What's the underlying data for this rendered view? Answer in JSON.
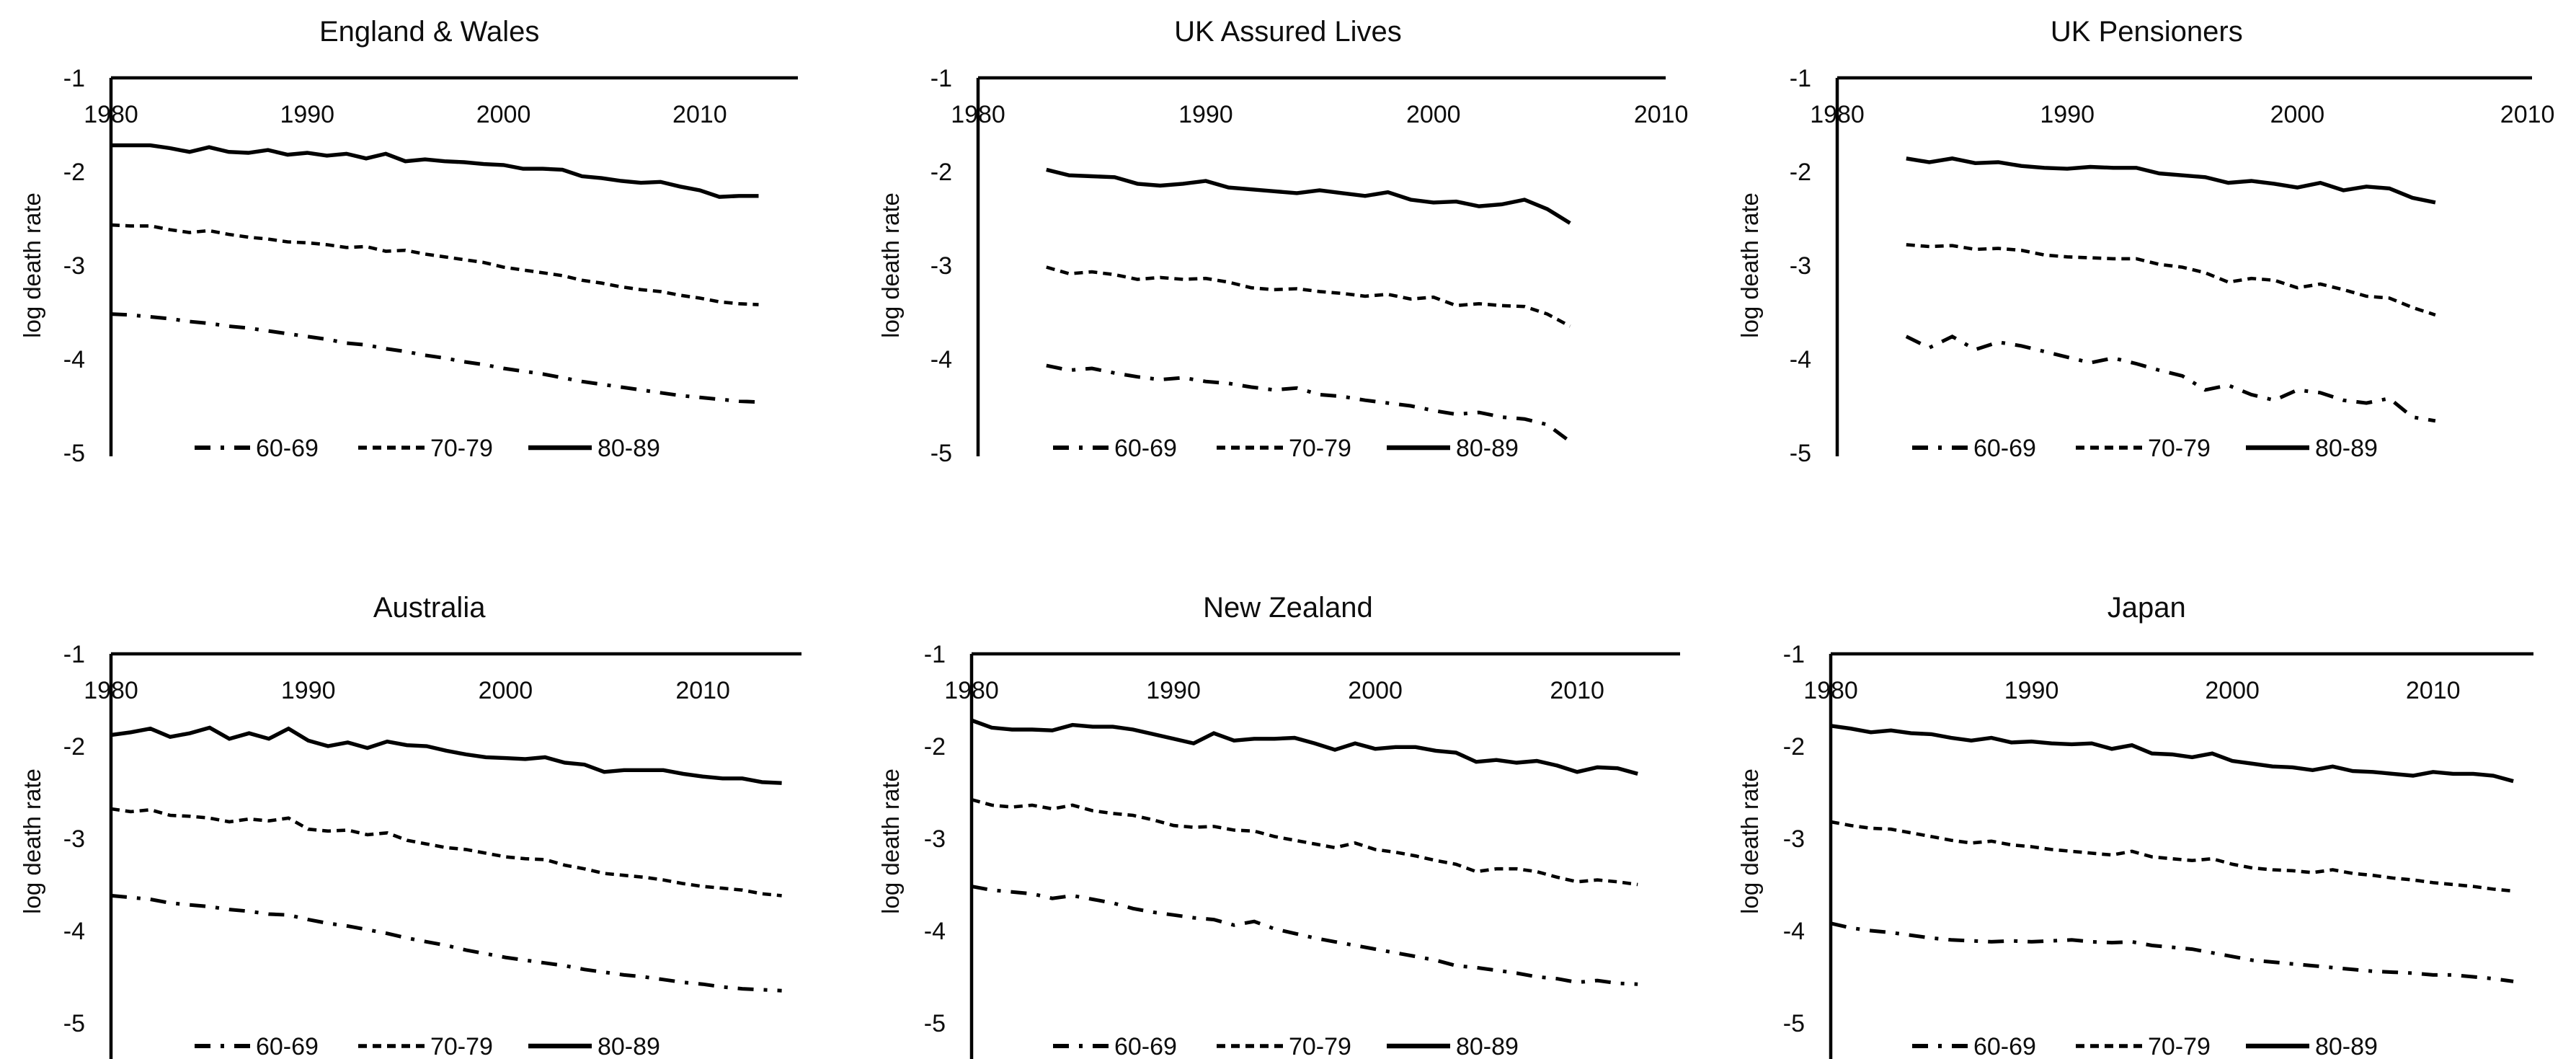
{
  "figure": {
    "ylabel": "log death rate",
    "yticks": [
      "-1",
      "-2",
      "-3",
      "-4",
      "-5"
    ],
    "xticks": [
      "1980",
      "1990",
      "2000",
      "2010"
    ],
    "legend": [
      {
        "label": "60-69",
        "style": "dashdot"
      },
      {
        "label": "70-79",
        "style": "dashed"
      },
      {
        "label": "80-89",
        "style": "solid"
      }
    ]
  },
  "chart_data": [
    {
      "type": "line",
      "title": "England & Wales",
      "ylabel": "log death rate",
      "xlim": [
        1980,
        2015
      ],
      "ylim": [
        -5,
        -1
      ],
      "xticks": [
        1980,
        1990,
        2000,
        2010
      ],
      "start_year": 1980,
      "series": [
        {
          "name": "60-69",
          "style": "dashdot",
          "values": [
            -3.52,
            -3.53,
            -3.55,
            -3.57,
            -3.6,
            -3.62,
            -3.65,
            -3.67,
            -3.7,
            -3.73,
            -3.76,
            -3.79,
            -3.83,
            -3.85,
            -3.89,
            -3.92,
            -3.96,
            -3.99,
            -4.03,
            -4.06,
            -4.1,
            -4.13,
            -4.16,
            -4.2,
            -4.24,
            -4.27,
            -4.3,
            -4.33,
            -4.36,
            -4.39,
            -4.41,
            -4.43,
            -4.45,
            -4.46
          ]
        },
        {
          "name": "70-79",
          "style": "dashed",
          "values": [
            -2.57,
            -2.58,
            -2.58,
            -2.62,
            -2.65,
            -2.63,
            -2.67,
            -2.7,
            -2.72,
            -2.75,
            -2.76,
            -2.78,
            -2.81,
            -2.8,
            -2.85,
            -2.84,
            -2.88,
            -2.91,
            -2.94,
            -2.97,
            -3.02,
            -3.05,
            -3.08,
            -3.11,
            -3.16,
            -3.19,
            -3.23,
            -3.26,
            -3.28,
            -3.32,
            -3.35,
            -3.39,
            -3.41,
            -3.42
          ]
        },
        {
          "name": "80-89",
          "style": "solid",
          "values": [
            -1.72,
            -1.72,
            -1.72,
            -1.75,
            -1.79,
            -1.74,
            -1.79,
            -1.8,
            -1.77,
            -1.82,
            -1.8,
            -1.83,
            -1.81,
            -1.86,
            -1.81,
            -1.89,
            -1.87,
            -1.89,
            -1.9,
            -1.92,
            -1.93,
            -1.97,
            -1.97,
            -1.98,
            -2.05,
            -2.07,
            -2.1,
            -2.12,
            -2.11,
            -2.16,
            -2.2,
            -2.27,
            -2.26,
            -2.26
          ]
        }
      ]
    },
    {
      "type": "line",
      "title": "UK Assured Lives",
      "ylabel": "log death rate",
      "xlim": [
        1980,
        2010.2
      ],
      "ylim": [
        -5,
        -1
      ],
      "xticks": [
        1980,
        1990,
        2000,
        2010
      ],
      "start_year": 1983,
      "series": [
        {
          "name": "60-69",
          "style": "dashdot",
          "values": [
            -4.07,
            -4.12,
            -4.1,
            -4.15,
            -4.19,
            -4.22,
            -4.2,
            -4.24,
            -4.26,
            -4.3,
            -4.33,
            -4.31,
            -4.38,
            -4.4,
            -4.44,
            -4.47,
            -4.5,
            -4.55,
            -4.59,
            -4.57,
            -4.62,
            -4.64,
            -4.7,
            -4.88
          ]
        },
        {
          "name": "70-79",
          "style": "dashed",
          "values": [
            -3.02,
            -3.09,
            -3.07,
            -3.1,
            -3.15,
            -3.13,
            -3.15,
            -3.14,
            -3.18,
            -3.24,
            -3.26,
            -3.25,
            -3.28,
            -3.3,
            -3.33,
            -3.31,
            -3.36,
            -3.34,
            -3.43,
            -3.41,
            -3.43,
            -3.44,
            -3.52,
            -3.65
          ]
        },
        {
          "name": "80-89",
          "style": "solid",
          "values": [
            -1.98,
            -2.04,
            -2.05,
            -2.06,
            -2.13,
            -2.15,
            -2.13,
            -2.1,
            -2.17,
            -2.19,
            -2.21,
            -2.23,
            -2.2,
            -2.23,
            -2.26,
            -2.22,
            -2.3,
            -2.33,
            -2.32,
            -2.37,
            -2.35,
            -2.3,
            -2.4,
            -2.55
          ]
        }
      ]
    },
    {
      "type": "line",
      "title": "UK Pensioners",
      "ylabel": "log death rate",
      "xlim": [
        1980,
        2010.2
      ],
      "ylim": [
        -5,
        -1
      ],
      "xticks": [
        1980,
        1990,
        2000,
        2010
      ],
      "start_year": 1983,
      "series": [
        {
          "name": "60-69",
          "style": "dashdot",
          "values": [
            -3.76,
            -3.88,
            -3.76,
            -3.9,
            -3.82,
            -3.86,
            -3.92,
            -3.98,
            -4.04,
            -3.99,
            -4.05,
            -4.12,
            -4.18,
            -4.33,
            -4.28,
            -4.38,
            -4.44,
            -4.33,
            -4.36,
            -4.44,
            -4.47,
            -4.42,
            -4.62,
            -4.66
          ]
        },
        {
          "name": "70-79",
          "style": "dashed",
          "values": [
            -2.78,
            -2.8,
            -2.79,
            -2.83,
            -2.82,
            -2.84,
            -2.89,
            -2.91,
            -2.92,
            -2.93,
            -2.93,
            -2.99,
            -3.02,
            -3.08,
            -3.18,
            -3.14,
            -3.16,
            -3.24,
            -3.2,
            -3.26,
            -3.33,
            -3.35,
            -3.45,
            -3.53
          ]
        },
        {
          "name": "80-89",
          "style": "solid",
          "values": [
            -1.86,
            -1.9,
            -1.86,
            -1.91,
            -1.9,
            -1.94,
            -1.96,
            -1.97,
            -1.95,
            -1.96,
            -1.96,
            -2.02,
            -2.04,
            -2.06,
            -2.12,
            -2.1,
            -2.13,
            -2.17,
            -2.12,
            -2.2,
            -2.16,
            -2.18,
            -2.28,
            -2.33
          ]
        }
      ]
    },
    {
      "type": "line",
      "title": "Australia",
      "ylabel": "log death rate",
      "xlim": [
        1980,
        2015
      ],
      "ylim": [
        -5,
        -1
      ],
      "xticks": [
        1980,
        1990,
        2000,
        2010
      ],
      "start_year": 1980,
      "series": [
        {
          "name": "60-69",
          "style": "dashdot",
          "values": [
            -3.62,
            -3.64,
            -3.66,
            -3.7,
            -3.72,
            -3.74,
            -3.77,
            -3.79,
            -3.82,
            -3.83,
            -3.88,
            -3.92,
            -3.95,
            -3.99,
            -4.03,
            -4.08,
            -4.12,
            -4.16,
            -4.21,
            -4.25,
            -4.29,
            -4.32,
            -4.35,
            -4.38,
            -4.42,
            -4.45,
            -4.48,
            -4.5,
            -4.53,
            -4.56,
            -4.58,
            -4.61,
            -4.63,
            -4.64,
            -4.65
          ]
        },
        {
          "name": "70-79",
          "style": "dashed",
          "values": [
            -2.68,
            -2.71,
            -2.69,
            -2.75,
            -2.76,
            -2.78,
            -2.82,
            -2.79,
            -2.81,
            -2.78,
            -2.9,
            -2.92,
            -2.91,
            -2.96,
            -2.94,
            -3.02,
            -3.06,
            -3.1,
            -3.12,
            -3.16,
            -3.2,
            -3.22,
            -3.23,
            -3.29,
            -3.33,
            -3.38,
            -3.4,
            -3.42,
            -3.45,
            -3.49,
            -3.52,
            -3.54,
            -3.56,
            -3.6,
            -3.62
          ]
        },
        {
          "name": "80-89",
          "style": "solid",
          "values": [
            -1.88,
            -1.85,
            -1.81,
            -1.9,
            -1.86,
            -1.8,
            -1.92,
            -1.86,
            -1.92,
            -1.81,
            -1.94,
            -2.0,
            -1.96,
            -2.02,
            -1.95,
            -1.99,
            -2.0,
            -2.05,
            -2.09,
            -2.12,
            -2.13,
            -2.14,
            -2.12,
            -2.18,
            -2.2,
            -2.28,
            -2.26,
            -2.26,
            -2.26,
            -2.3,
            -2.33,
            -2.35,
            -2.35,
            -2.39,
            -2.4
          ]
        }
      ]
    },
    {
      "type": "line",
      "title": "New Zealand",
      "ylabel": "log death rate",
      "xlim": [
        1980,
        2015.1
      ],
      "ylim": [
        -5,
        -1
      ],
      "xticks": [
        1980,
        1990,
        2000,
        2010
      ],
      "start_year": 1980,
      "series": [
        {
          "name": "60-69",
          "style": "dashdot",
          "values": [
            -3.52,
            -3.56,
            -3.58,
            -3.6,
            -3.65,
            -3.62,
            -3.66,
            -3.7,
            -3.76,
            -3.8,
            -3.83,
            -3.86,
            -3.88,
            -3.94,
            -3.9,
            -3.98,
            -4.03,
            -4.08,
            -4.12,
            -4.16,
            -4.2,
            -4.24,
            -4.28,
            -4.32,
            -4.38,
            -4.4,
            -4.43,
            -4.46,
            -4.5,
            -4.52,
            -4.56,
            -4.54,
            -4.57,
            -4.58
          ]
        },
        {
          "name": "70-79",
          "style": "dashed",
          "values": [
            -2.58,
            -2.64,
            -2.66,
            -2.64,
            -2.68,
            -2.64,
            -2.7,
            -2.73,
            -2.75,
            -2.8,
            -2.86,
            -2.88,
            -2.87,
            -2.91,
            -2.92,
            -2.98,
            -3.02,
            -3.06,
            -3.1,
            -3.05,
            -3.12,
            -3.15,
            -3.19,
            -3.24,
            -3.28,
            -3.36,
            -3.33,
            -3.33,
            -3.36,
            -3.42,
            -3.47,
            -3.45,
            -3.47,
            -3.5
          ]
        },
        {
          "name": "80-89",
          "style": "solid",
          "values": [
            -1.72,
            -1.8,
            -1.82,
            -1.82,
            -1.83,
            -1.77,
            -1.79,
            -1.79,
            -1.82,
            -1.87,
            -1.92,
            -1.97,
            -1.86,
            -1.94,
            -1.92,
            -1.92,
            -1.91,
            -1.97,
            -2.04,
            -1.97,
            -2.03,
            -2.01,
            -2.01,
            -2.05,
            -2.07,
            -2.17,
            -2.15,
            -2.18,
            -2.16,
            -2.21,
            -2.28,
            -2.23,
            -2.24,
            -2.3
          ]
        }
      ]
    },
    {
      "type": "line",
      "title": "Japan",
      "ylabel": "log death rate",
      "xlim": [
        1980,
        2015
      ],
      "ylim": [
        -5,
        -1
      ],
      "xticks": [
        1980,
        1990,
        2000,
        2010
      ],
      "start_year": 1980,
      "series": [
        {
          "name": "60-69",
          "style": "dashdot",
          "values": [
            -3.92,
            -3.97,
            -4.0,
            -4.02,
            -4.05,
            -4.08,
            -4.1,
            -4.11,
            -4.12,
            -4.11,
            -4.12,
            -4.11,
            -4.1,
            -4.12,
            -4.13,
            -4.12,
            -4.16,
            -4.18,
            -4.2,
            -4.24,
            -4.28,
            -4.32,
            -4.34,
            -4.36,
            -4.38,
            -4.4,
            -4.42,
            -4.44,
            -4.45,
            -4.46,
            -4.48,
            -4.48,
            -4.5,
            -4.52,
            -4.55
          ]
        },
        {
          "name": "70-79",
          "style": "dashed",
          "values": [
            -2.82,
            -2.86,
            -2.89,
            -2.9,
            -2.94,
            -2.98,
            -3.02,
            -3.05,
            -3.03,
            -3.07,
            -3.09,
            -3.12,
            -3.14,
            -3.16,
            -3.18,
            -3.14,
            -3.2,
            -3.22,
            -3.24,
            -3.22,
            -3.28,
            -3.32,
            -3.34,
            -3.35,
            -3.37,
            -3.34,
            -3.38,
            -3.4,
            -3.43,
            -3.45,
            -3.48,
            -3.5,
            -3.52,
            -3.55,
            -3.57
          ]
        },
        {
          "name": "80-89",
          "style": "solid",
          "values": [
            -1.78,
            -1.81,
            -1.85,
            -1.83,
            -1.86,
            -1.87,
            -1.91,
            -1.94,
            -1.91,
            -1.96,
            -1.95,
            -1.97,
            -1.98,
            -1.97,
            -2.03,
            -1.99,
            -2.08,
            -2.09,
            -2.12,
            -2.08,
            -2.16,
            -2.19,
            -2.22,
            -2.23,
            -2.26,
            -2.22,
            -2.27,
            -2.28,
            -2.3,
            -2.32,
            -2.28,
            -2.3,
            -2.3,
            -2.32,
            -2.38
          ]
        }
      ]
    }
  ]
}
